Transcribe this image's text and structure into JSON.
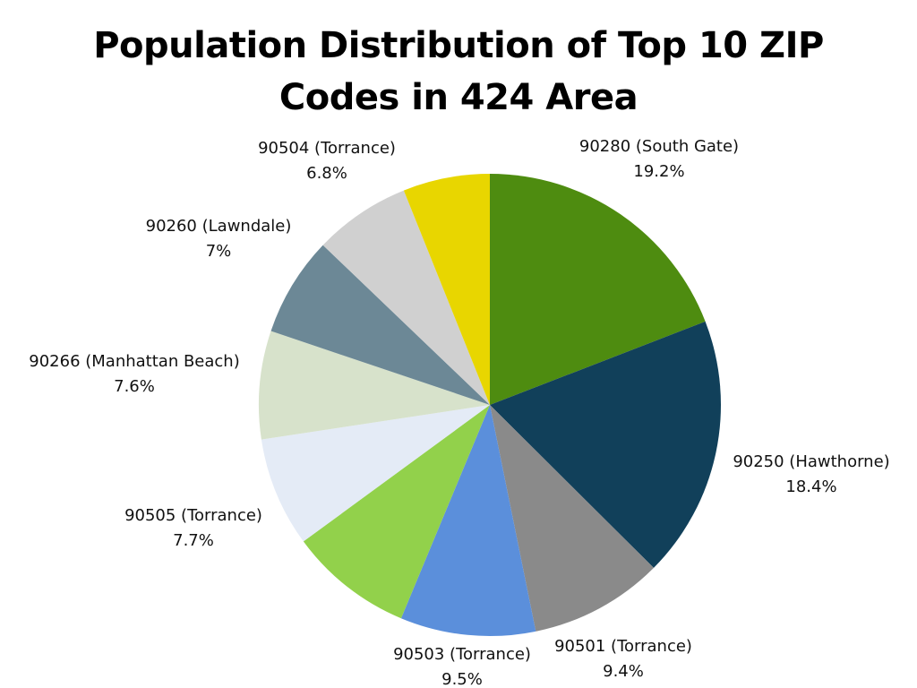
{
  "chart_data": {
    "type": "pie",
    "title": "Population Distribution of Top 10 ZIP Codes in 424 Area",
    "title_lines": [
      "Population Distribution of Top 10 ZIP",
      "Codes in 424 Area"
    ],
    "start": "top, clockwise",
    "legend": "none",
    "slices": [
      {
        "label": "90280 (South Gate)",
        "value": 19.2,
        "value_label": "19.2%",
        "color": "#4e8c10"
      },
      {
        "label": "90250 (Hawthorne)",
        "value": 18.4,
        "value_label": "18.4%",
        "color": "#11405a"
      },
      {
        "label": "90501 (Torrance)",
        "value": 9.4,
        "value_label": "9.4%",
        "color": "#8a8a8a"
      },
      {
        "label": "90503 (Torrance)",
        "value": 9.5,
        "value_label": "9.5%",
        "color": "#5b8fdb"
      },
      {
        "label": "",
        "value": 8.7,
        "value_label": "",
        "color": "#92d14b"
      },
      {
        "label": "90505 (Torrance)",
        "value": 7.7,
        "value_label": "7.7%",
        "color": "#e4ebf6"
      },
      {
        "label": "90266 (Manhattan Beach)",
        "value": 7.6,
        "value_label": "7.6%",
        "color": "#d7e2cb"
      },
      {
        "label": "90260 (Lawndale)",
        "value": 7,
        "value_label": "7%",
        "color": "#6c8896"
      },
      {
        "label": "90504 (Torrance)",
        "value": 6.8,
        "value_label": "6.8%",
        "color": "#d0d0d0"
      },
      {
        "label": "",
        "value": 6.1,
        "value_label": "",
        "color": "#e8d600"
      }
    ]
  }
}
